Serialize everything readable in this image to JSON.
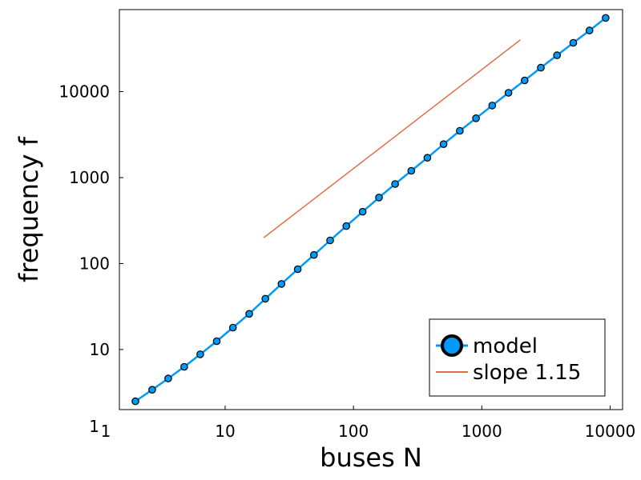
{
  "chart_data": {
    "type": "line",
    "xlabel": "buses N",
    "ylabel": "frequency f",
    "xscale": "log",
    "yscale": "log",
    "xlim": [
      1.5,
      12500
    ],
    "ylim": [
      2,
      90000
    ],
    "x_ticks": [
      {
        "value": 1,
        "label": "1"
      },
      {
        "value": 10,
        "label": "10"
      },
      {
        "value": 100,
        "label": "100"
      },
      {
        "value": 1000,
        "label": "1000"
      },
      {
        "value": 10000,
        "label": "10000"
      }
    ],
    "y_ticks": [
      {
        "value": 1,
        "label": "1"
      },
      {
        "value": 10,
        "label": "10"
      },
      {
        "value": 100,
        "label": "100"
      },
      {
        "value": 1000,
        "label": "1000"
      },
      {
        "value": 10000,
        "label": "10000"
      }
    ],
    "grid": false,
    "legend_position": "bottom-right",
    "series": [
      {
        "name": "model",
        "color": "#009AFA",
        "marker": "circle",
        "x": [
          2,
          2.7,
          3.6,
          4.8,
          6.4,
          8.6,
          11.5,
          15.4,
          20.6,
          27.5,
          36.8,
          49.2,
          65.8,
          88,
          118,
          158,
          211,
          282,
          377,
          504,
          674,
          902,
          1206,
          1613,
          2157,
          2885,
          3858,
          5160,
          6901,
          9230
        ],
        "y": [
          2.5,
          3.4,
          4.6,
          6.3,
          8.8,
          12.5,
          18,
          26,
          39,
          58,
          86,
          126,
          186,
          273,
          400,
          586,
          842,
          1200,
          1700,
          2450,
          3500,
          4900,
          6900,
          9700,
          13500,
          19000,
          26500,
          37000,
          51500,
          72000
        ]
      },
      {
        "name": "slope 1.15",
        "color": "#E26F46",
        "marker": "none",
        "x": [
          20,
          2000
        ],
        "y": [
          200,
          40000
        ]
      }
    ]
  }
}
